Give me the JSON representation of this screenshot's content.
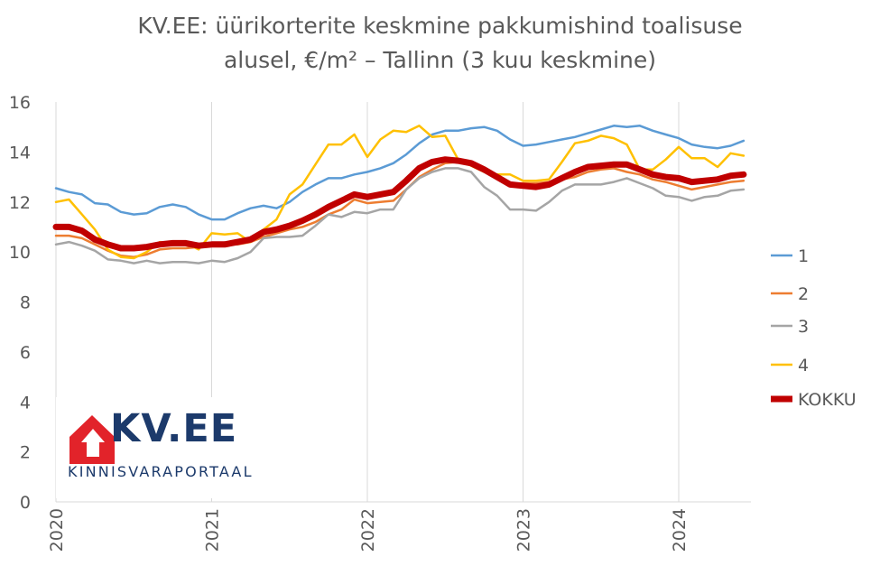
{
  "chart_data": {
    "type": "line",
    "title_line1": "KV.EE: üürikorterite keskmine pakkumishind toalisuse",
    "title_line2": "alusel, €/m² – Tallinn (3 kuu keskmine)",
    "xlabel": "",
    "ylabel": "",
    "ylim": [
      0,
      16
    ],
    "yticks": [
      "0",
      "2",
      "4",
      "6",
      "8",
      "10",
      "12",
      "14",
      "16"
    ],
    "x_start": "2020-01",
    "x_tick_labels": [
      "2020",
      "2021",
      "2022",
      "2023",
      "2024"
    ],
    "grid": "vertical-yearly",
    "legend_position": "right",
    "series": [
      {
        "name": "1",
        "color": "#5b9bd5",
        "values": [
          12.55,
          12.4,
          12.3,
          11.95,
          11.9,
          11.6,
          11.5,
          11.55,
          11.8,
          11.9,
          11.8,
          11.5,
          11.3,
          11.3,
          11.55,
          11.75,
          11.85,
          11.75,
          12.0,
          12.4,
          12.7,
          12.95,
          12.95,
          13.1,
          13.2,
          13.35,
          13.55,
          13.9,
          14.35,
          14.7,
          14.85,
          14.85,
          14.95,
          15.0,
          14.85,
          14.5,
          14.25,
          14.3,
          14.4,
          14.5,
          14.6,
          14.75,
          14.9,
          15.05,
          15.0,
          15.05,
          14.85,
          14.7,
          14.55,
          14.3,
          14.2,
          14.15,
          14.25,
          14.45
        ]
      },
      {
        "name": "2",
        "color": "#ed7d31",
        "values": [
          10.65,
          10.65,
          10.55,
          10.3,
          10.05,
          9.85,
          9.8,
          9.9,
          10.1,
          10.15,
          10.15,
          10.2,
          10.25,
          10.3,
          10.3,
          10.4,
          10.6,
          10.75,
          10.9,
          11.0,
          11.2,
          11.5,
          11.7,
          12.1,
          11.95,
          12.0,
          12.05,
          12.5,
          13.0,
          13.3,
          13.55,
          13.6,
          13.55,
          13.35,
          13.0,
          12.7,
          12.75,
          12.75,
          12.8,
          12.9,
          13.0,
          13.2,
          13.3,
          13.35,
          13.2,
          13.1,
          12.9,
          12.8,
          12.65,
          12.5,
          12.6,
          12.7,
          12.8,
          12.85
        ]
      },
      {
        "name": "3",
        "color": "#a5a5a5",
        "values": [
          10.3,
          10.4,
          10.25,
          10.05,
          9.7,
          9.65,
          9.55,
          9.65,
          9.55,
          9.6,
          9.6,
          9.55,
          9.65,
          9.6,
          9.75,
          10.0,
          10.55,
          10.6,
          10.6,
          10.65,
          11.05,
          11.5,
          11.4,
          11.6,
          11.55,
          11.7,
          11.7,
          12.5,
          12.95,
          13.2,
          13.35,
          13.35,
          13.2,
          12.6,
          12.25,
          11.7,
          11.7,
          11.65,
          12.0,
          12.45,
          12.7,
          12.7,
          12.7,
          12.8,
          12.95,
          12.75,
          12.55,
          12.25,
          12.2,
          12.05,
          12.2,
          12.25,
          12.45,
          12.5
        ]
      },
      {
        "name": "4",
        "color": "#ffc000",
        "values": [
          12.0,
          12.1,
          11.5,
          10.9,
          10.1,
          9.8,
          9.75,
          10.0,
          10.4,
          10.3,
          10.35,
          10.1,
          10.75,
          10.7,
          10.75,
          10.4,
          10.9,
          11.3,
          12.3,
          12.7,
          13.5,
          14.3,
          14.3,
          14.7,
          13.8,
          14.5,
          14.85,
          14.8,
          15.05,
          14.6,
          14.65,
          13.7,
          13.45,
          13.2,
          13.1,
          13.1,
          12.85,
          12.85,
          12.9,
          13.6,
          14.35,
          14.45,
          14.65,
          14.55,
          14.3,
          13.3,
          13.3,
          13.7,
          14.2,
          13.75,
          13.75,
          13.4,
          13.95,
          13.85
        ]
      },
      {
        "name": "KOKKU",
        "color": "#c00000",
        "values": [
          11.0,
          11.0,
          10.85,
          10.5,
          10.3,
          10.15,
          10.15,
          10.2,
          10.3,
          10.35,
          10.35,
          10.25,
          10.3,
          10.3,
          10.4,
          10.5,
          10.8,
          10.9,
          11.05,
          11.25,
          11.5,
          11.8,
          12.05,
          12.3,
          12.2,
          12.3,
          12.4,
          12.85,
          13.35,
          13.6,
          13.7,
          13.65,
          13.55,
          13.3,
          13.0,
          12.7,
          12.65,
          12.6,
          12.7,
          12.95,
          13.2,
          13.4,
          13.45,
          13.5,
          13.5,
          13.3,
          13.1,
          13.0,
          12.95,
          12.8,
          12.85,
          12.9,
          13.05,
          13.1
        ]
      }
    ]
  },
  "logo": {
    "text": "KV.EE",
    "subtitle": "KINNISVARAPORTAAL",
    "color": "#e2232a"
  }
}
